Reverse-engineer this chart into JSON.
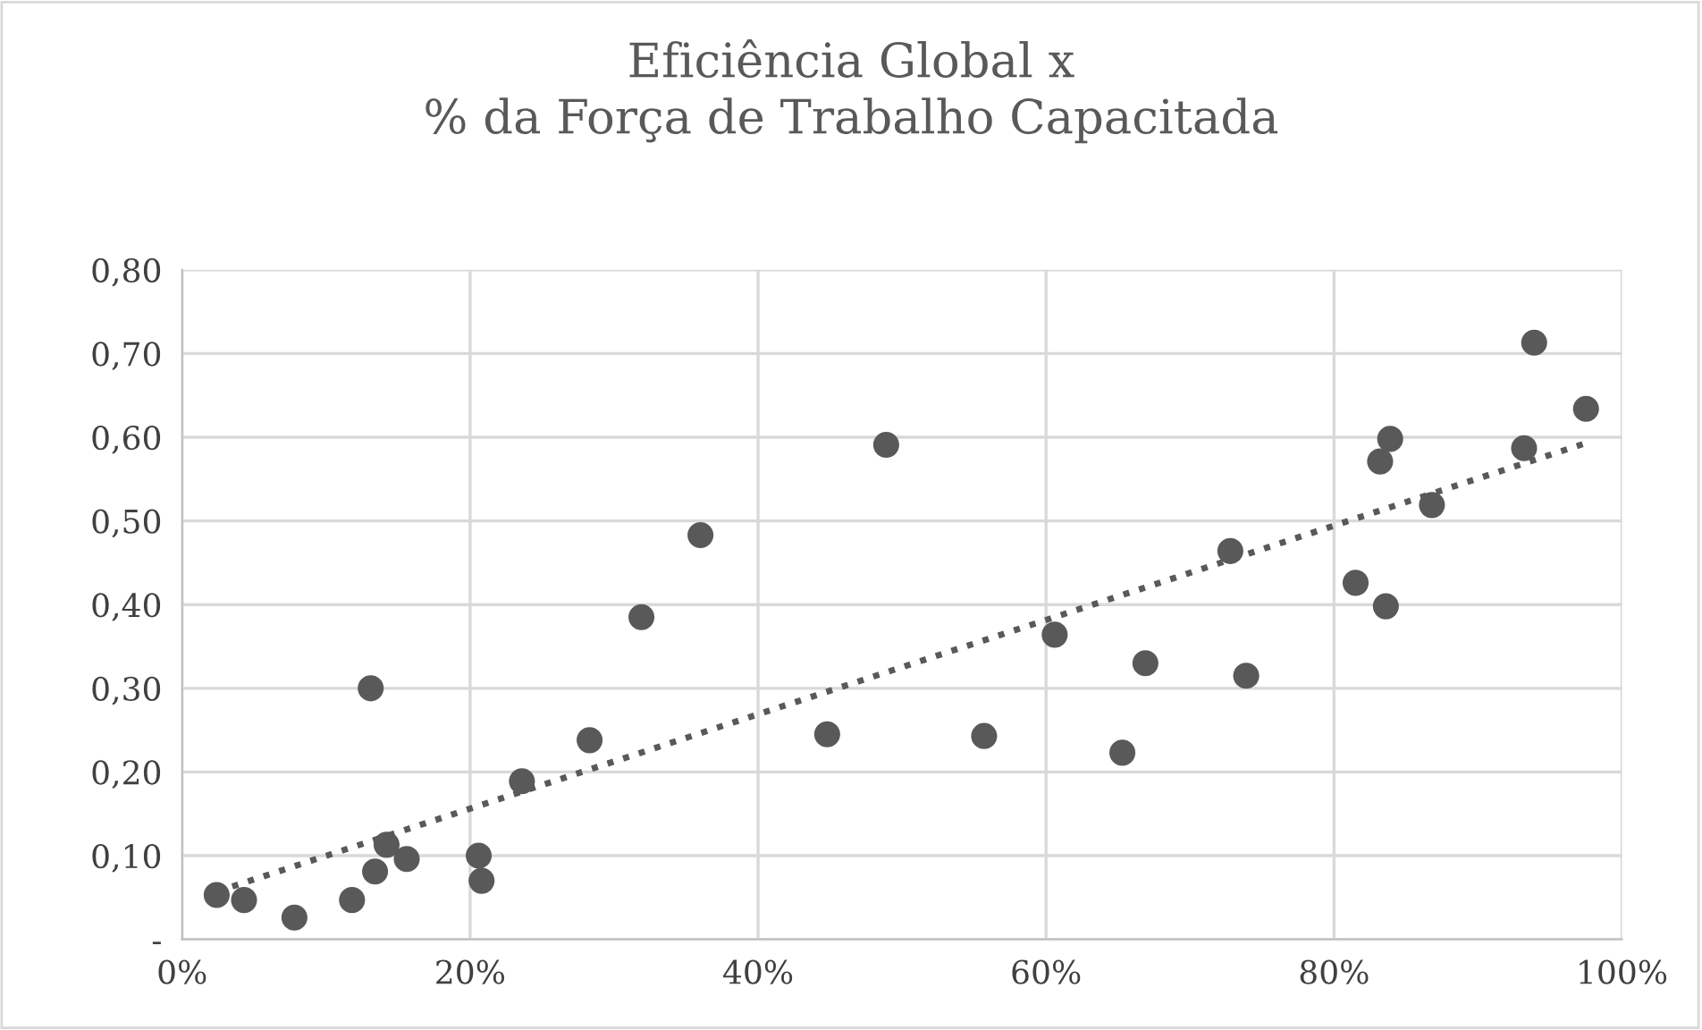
{
  "chart_data": {
    "type": "scatter",
    "title": "Eficiência Global x\n% da Força de Trabalho Capacitada",
    "x": [
      2.4,
      4.3,
      7.8,
      11.8,
      13.1,
      13.4,
      14.2,
      15.6,
      20.6,
      20.8,
      23.6,
      28.3,
      31.9,
      36.0,
      44.8,
      48.9,
      55.7,
      60.6,
      66.9,
      65.3,
      72.8,
      73.9,
      81.5,
      83.2,
      83.9,
      83.6,
      86.8,
      93.2,
      93.9,
      97.5
    ],
    "series": [
      {
        "color": "#595959",
        "marker": "circle",
        "values": [
          0.053,
          0.047,
          0.026,
          0.047,
          0.3,
          0.081,
          0.113,
          0.096,
          0.1,
          0.07,
          0.189,
          0.238,
          0.385,
          0.483,
          0.245,
          0.591,
          0.243,
          0.364,
          0.33,
          0.223,
          0.464,
          0.315,
          0.426,
          0.571,
          0.598,
          0.398,
          0.519,
          0.587,
          0.713,
          0.634
        ]
      },
      {
        "type": "line",
        "color": "#595959",
        "line_style": "dotted",
        "marker": "none",
        "x": [
          2.4,
          97.5
        ],
        "values": [
          0.057,
          0.593
        ]
      }
    ],
    "xlim": [
      0,
      100
    ],
    "ylim": [
      0,
      0.8
    ],
    "xticks": [
      {
        "value": 0,
        "label": "0%"
      },
      {
        "value": 20,
        "label": "20%"
      },
      {
        "value": 40,
        "label": "40%"
      },
      {
        "value": 60,
        "label": "60%"
      },
      {
        "value": 80,
        "label": "80%"
      },
      {
        "value": 100,
        "label": "100%"
      }
    ],
    "yticks": [
      {
        "value": 0,
        "label": "-"
      },
      {
        "value": 0.1,
        "label": "0,10"
      },
      {
        "value": 0.2,
        "label": "0,20"
      },
      {
        "value": 0.3,
        "label": "0,30"
      },
      {
        "value": 0.4,
        "label": "0,40"
      },
      {
        "value": 0.5,
        "label": "0,50"
      },
      {
        "value": 0.6,
        "label": "0,60"
      },
      {
        "value": 0.7,
        "label": "0,70"
      },
      {
        "value": 0.8,
        "label": "0,80"
      }
    ],
    "grid": true,
    "legend": false
  }
}
